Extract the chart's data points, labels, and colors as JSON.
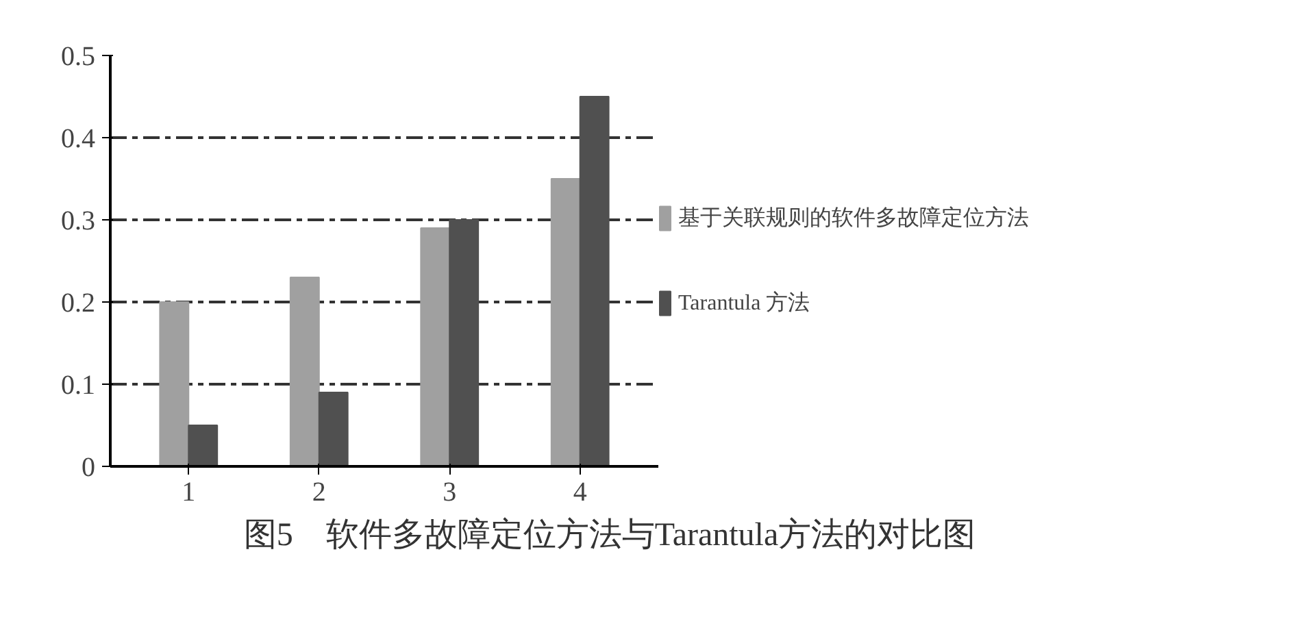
{
  "chart_data": {
    "type": "bar",
    "title": "图5　软件多故障定位方法与Tarantula方法的对比图",
    "categories": [
      "1",
      "2",
      "3",
      "4"
    ],
    "series": [
      {
        "name": "基于关联规则的软件多故障定位方法",
        "color": "#a0a0a0",
        "values": [
          0.2,
          0.23,
          0.29,
          0.35
        ]
      },
      {
        "name": "Tarantula 方法",
        "color": "#505050",
        "values": [
          0.05,
          0.09,
          0.3,
          0.45
        ]
      }
    ],
    "ylim": [
      0,
      0.5
    ],
    "yticks": [
      0,
      0.1,
      0.2,
      0.3,
      0.4,
      0.5
    ],
    "grid": "y",
    "legend": "right",
    "line_style": "dashed"
  }
}
